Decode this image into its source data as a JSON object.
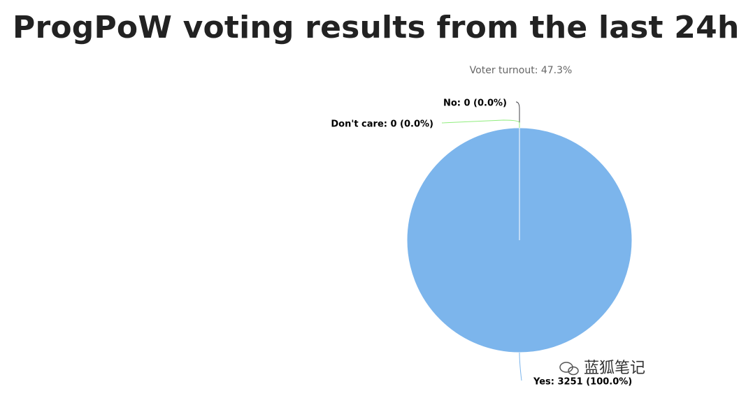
{
  "chart_data": {
    "type": "pie",
    "title": "ProgPoW voting results from the last 24h",
    "subtitle": "Voter turnout: 47.3%",
    "categories": [
      "Yes",
      "No",
      "Don't care"
    ],
    "values": [
      3251,
      0,
      0
    ],
    "value_labels": [
      "Yes: 3251 (100.0%)",
      "No: 0 (0.0%)",
      "Don't care: 0 (0.0%)"
    ],
    "colors": [
      "#7cb5ec",
      "#434348",
      "#90ed7d"
    ]
  },
  "watermark": "蓝狐笔记"
}
